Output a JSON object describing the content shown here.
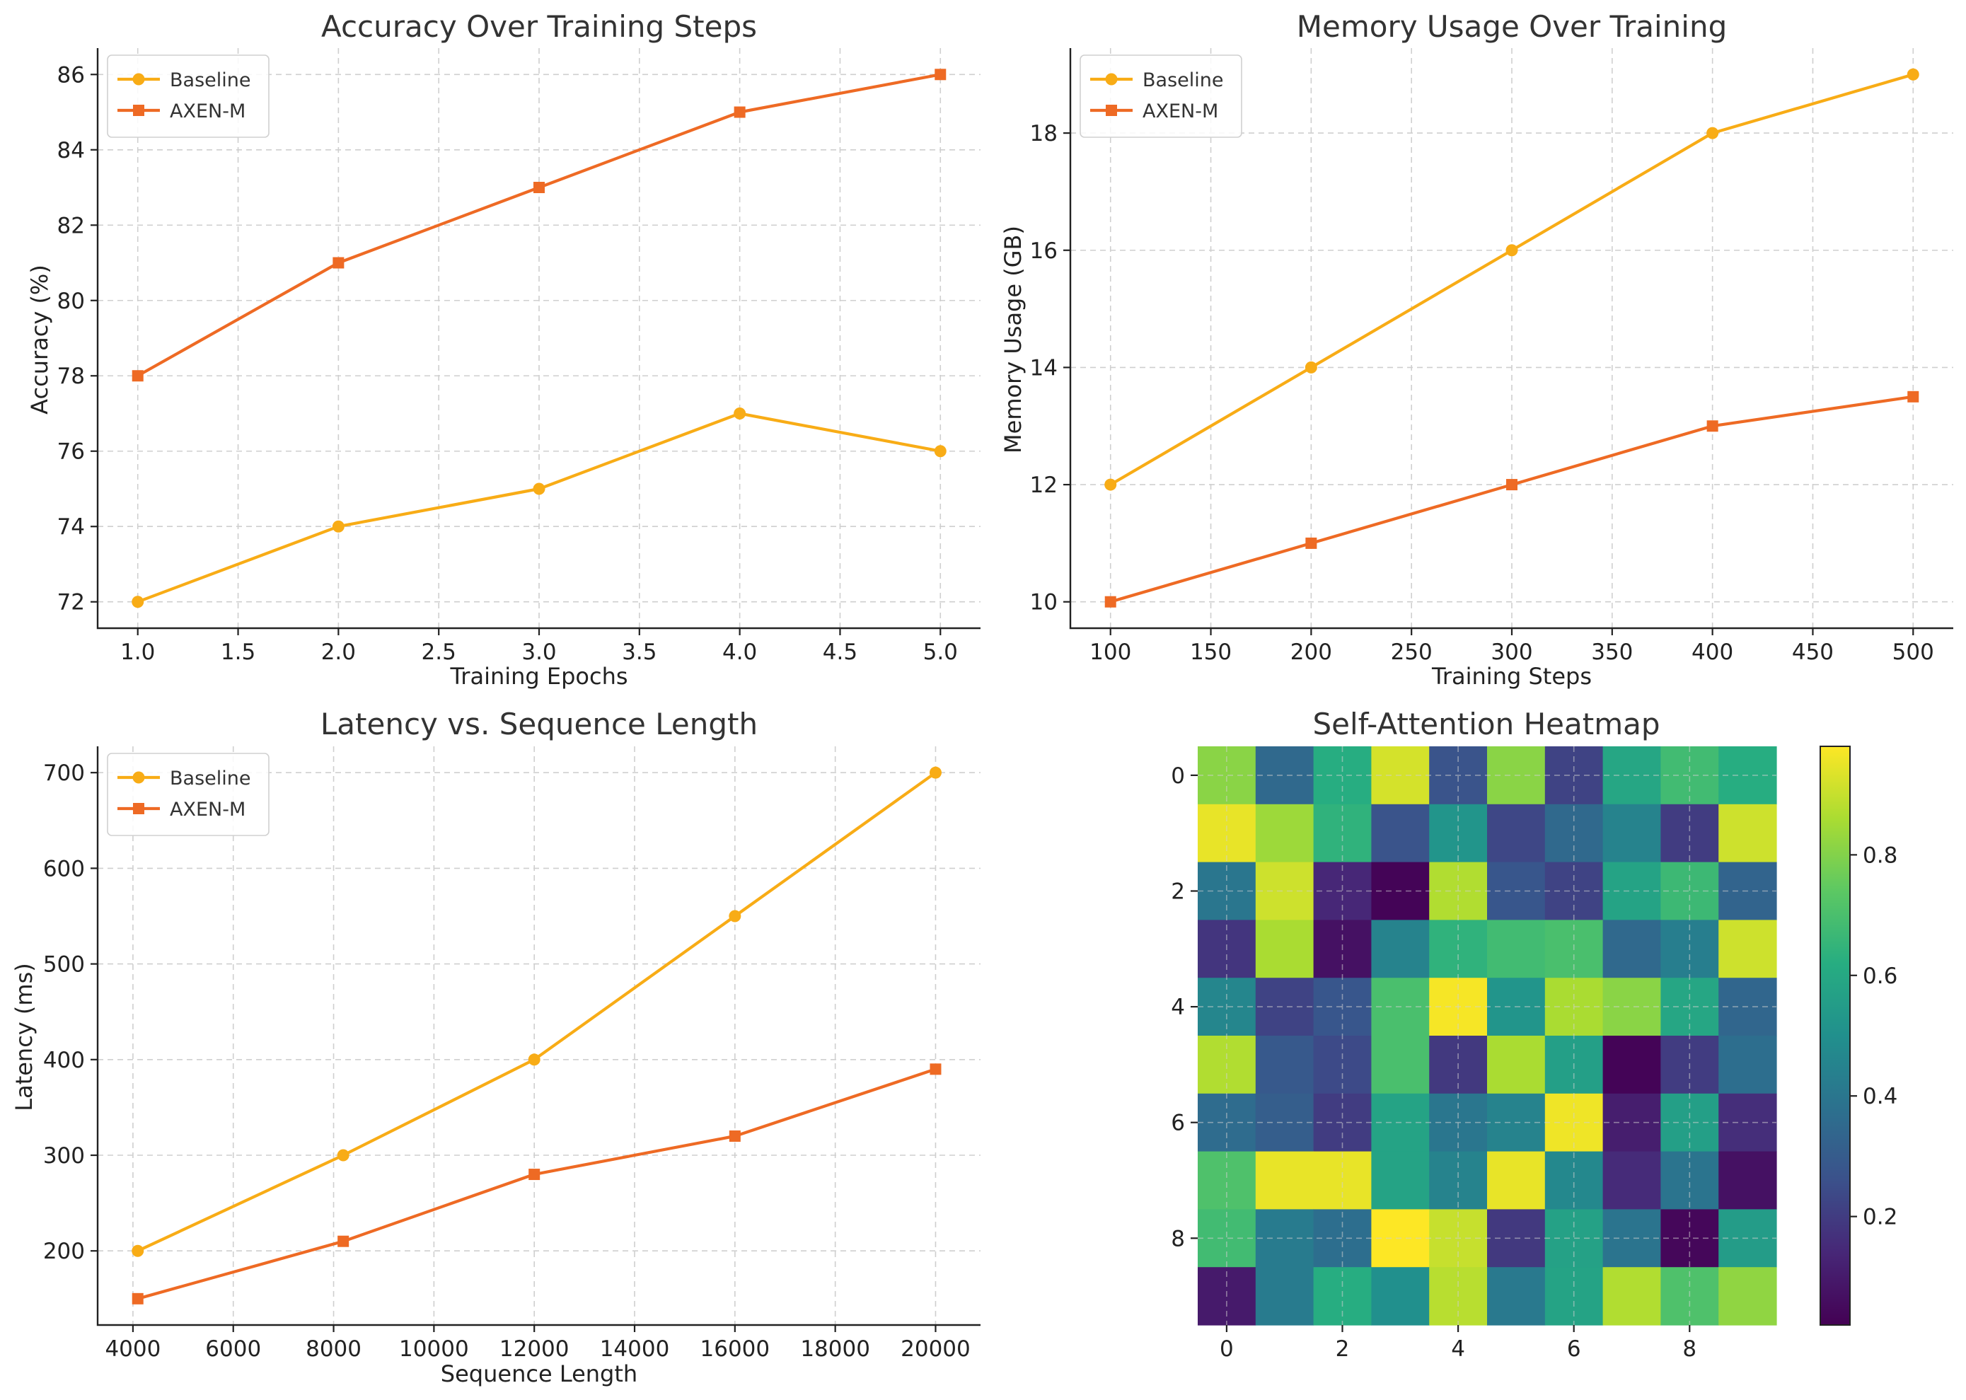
{
  "colors": {
    "baseline": "#F8AC16",
    "axen": "#EE6A24"
  },
  "chart_data": [
    {
      "id": "accuracy",
      "type": "line",
      "title": "Accuracy Over Training Steps",
      "xlabel": "Training Epochs",
      "ylabel": "Accuracy (%)",
      "xlim": [
        0.8,
        5.2
      ],
      "ylim": [
        71.3,
        86.7
      ],
      "xticks": [
        1.0,
        1.5,
        2.0,
        2.5,
        3.0,
        3.5,
        4.0,
        4.5,
        5.0
      ],
      "xtick_labels": [
        "1.0",
        "1.5",
        "2.0",
        "2.5",
        "3.0",
        "3.5",
        "4.0",
        "4.5",
        "5.0"
      ],
      "yticks": [
        72,
        74,
        76,
        78,
        80,
        82,
        84,
        86
      ],
      "ytick_labels": [
        "72",
        "74",
        "76",
        "78",
        "80",
        "82",
        "84",
        "86"
      ],
      "grid": true,
      "legend": "top-left",
      "x": [
        1,
        2,
        3,
        4,
        5
      ],
      "series": [
        {
          "name": "Baseline",
          "color": "#F8AC16",
          "marker": "circle",
          "values": [
            72,
            74,
            75,
            77,
            76
          ]
        },
        {
          "name": "AXEN-M",
          "color": "#EE6A24",
          "marker": "square",
          "values": [
            78,
            81,
            83,
            85,
            86
          ]
        }
      ]
    },
    {
      "id": "memory",
      "type": "line",
      "title": "Memory Usage Over Training",
      "xlabel": "Training Steps",
      "ylabel": "Memory Usage (GB)",
      "xlim": [
        80,
        520
      ],
      "ylim": [
        9.55,
        19.45
      ],
      "xticks": [
        100,
        150,
        200,
        250,
        300,
        350,
        400,
        450,
        500
      ],
      "xtick_labels": [
        "100",
        "150",
        "200",
        "250",
        "300",
        "350",
        "400",
        "450",
        "500"
      ],
      "yticks": [
        10,
        12,
        14,
        16,
        18
      ],
      "ytick_labels": [
        "10",
        "12",
        "14",
        "16",
        "18"
      ],
      "grid": true,
      "legend": "top-left",
      "x": [
        100,
        200,
        300,
        400,
        500
      ],
      "series": [
        {
          "name": "Baseline",
          "color": "#F8AC16",
          "marker": "circle",
          "values": [
            12,
            14,
            16,
            18,
            19
          ]
        },
        {
          "name": "AXEN-M",
          "color": "#EE6A24",
          "marker": "square",
          "values": [
            10,
            11,
            12,
            13,
            13.5
          ]
        }
      ]
    },
    {
      "id": "latency",
      "type": "line",
      "title": "Latency vs. Sequence Length",
      "xlabel": "Sequence Length",
      "ylabel": "Latency (ms)",
      "xlim": [
        3296,
        20896
      ],
      "ylim": [
        122.5,
        727.5
      ],
      "xticks": [
        4000,
        6000,
        8000,
        10000,
        12000,
        14000,
        16000,
        18000,
        20000
      ],
      "xtick_labels": [
        "4000",
        "6000",
        "8000",
        "10000",
        "12000",
        "14000",
        "16000",
        "18000",
        "20000"
      ],
      "yticks": [
        200,
        300,
        400,
        500,
        600,
        700
      ],
      "ytick_labels": [
        "200",
        "300",
        "400",
        "500",
        "600",
        "700"
      ],
      "grid": true,
      "legend": "top-left",
      "x": [
        4096,
        8192,
        12000,
        16000,
        20000
      ],
      "series": [
        {
          "name": "Baseline",
          "color": "#F8AC16",
          "marker": "circle",
          "values": [
            200,
            300,
            400,
            550,
            700
          ]
        },
        {
          "name": "AXEN-M",
          "color": "#EE6A24",
          "marker": "square",
          "values": [
            150,
            210,
            280,
            320,
            390
          ]
        }
      ]
    },
    {
      "id": "attention",
      "type": "heatmap",
      "title": "Self-Attention Heatmap",
      "xticks": [
        0,
        2,
        4,
        6,
        8
      ],
      "xtick_labels": [
        "0",
        "2",
        "4",
        "6",
        "8"
      ],
      "yticks": [
        0,
        2,
        4,
        6,
        8
      ],
      "ytick_labels": [
        "0",
        "2",
        "4",
        "6",
        "8"
      ],
      "grid": true,
      "colormap": "viridis",
      "colorbar_range": [
        0.02,
        0.98
      ],
      "colorbar_ticks": [
        0.2,
        0.4,
        0.6,
        0.8
      ],
      "colorbar_tick_labels": [
        "0.2",
        "0.4",
        "0.6",
        "0.8"
      ],
      "values": [
        [
          0.81,
          0.35,
          0.62,
          0.92,
          0.27,
          0.81,
          0.22,
          0.59,
          0.68,
          0.62
        ],
        [
          0.95,
          0.84,
          0.64,
          0.27,
          0.52,
          0.23,
          0.35,
          0.45,
          0.2,
          0.91
        ],
        [
          0.4,
          0.91,
          0.14,
          0.03,
          0.87,
          0.28,
          0.22,
          0.58,
          0.67,
          0.33
        ],
        [
          0.18,
          0.86,
          0.07,
          0.45,
          0.64,
          0.68,
          0.7,
          0.35,
          0.43,
          0.91
        ],
        [
          0.46,
          0.22,
          0.28,
          0.7,
          0.97,
          0.52,
          0.86,
          0.81,
          0.59,
          0.34
        ],
        [
          0.87,
          0.29,
          0.24,
          0.7,
          0.19,
          0.86,
          0.56,
          0.03,
          0.2,
          0.37
        ],
        [
          0.36,
          0.31,
          0.2,
          0.58,
          0.4,
          0.45,
          0.96,
          0.11,
          0.56,
          0.16
        ],
        [
          0.71,
          0.95,
          0.95,
          0.58,
          0.45,
          0.95,
          0.47,
          0.15,
          0.39,
          0.07
        ],
        [
          0.68,
          0.42,
          0.37,
          0.98,
          0.9,
          0.19,
          0.57,
          0.39,
          0.04,
          0.55
        ],
        [
          0.1,
          0.42,
          0.62,
          0.5,
          0.88,
          0.41,
          0.58,
          0.87,
          0.71,
          0.82
        ]
      ]
    }
  ]
}
